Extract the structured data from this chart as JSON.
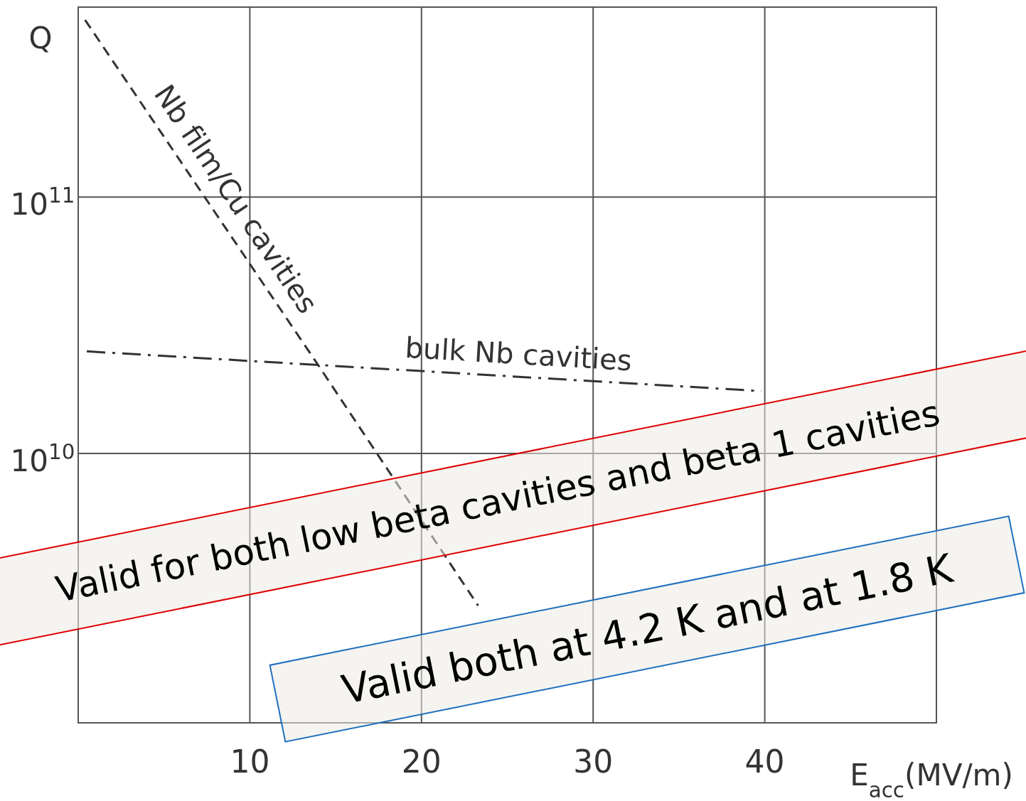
{
  "chart_data": {
    "type": "line",
    "xlabel": "E$_{acc}$(MV/m)",
    "ylabel": "Q",
    "log": "y",
    "grid": true,
    "xlim": [
      0,
      50
    ],
    "xticks": [
      {
        "value": 0,
        "label": null
      },
      10,
      20,
      30,
      40,
      {
        "value": 50,
        "label": null
      }
    ],
    "ylim": [
      890000000.0,
      550000000000.0
    ],
    "yticks": [
      {
        "value": 10000000000.0,
        "label": "10$^{10}$"
      },
      {
        "value": 100000000000.0,
        "label": "10$^{11}$"
      }
    ],
    "series": [
      {
        "name": "Nb film/Cu cavities",
        "color": "#333333",
        "line_style": "dashed",
        "x": [
          0.4,
          14,
          23.3
        ],
        "values": [
          490000000000.0,
          22000000000.0,
          2550000000.0
        ]
      },
      {
        "name": "bulk  Nb cavities",
        "color": "#333333",
        "line_style": "dashdot",
        "x": [
          0.5,
          39.8
        ],
        "values": [
          25000000000.0,
          17500000000.0
        ]
      }
    ],
    "annotations": [
      "Valid for both low beta cavities and beta 1 cavities",
      "Valid both at 4.2 K and at 1.8 K"
    ]
  }
}
